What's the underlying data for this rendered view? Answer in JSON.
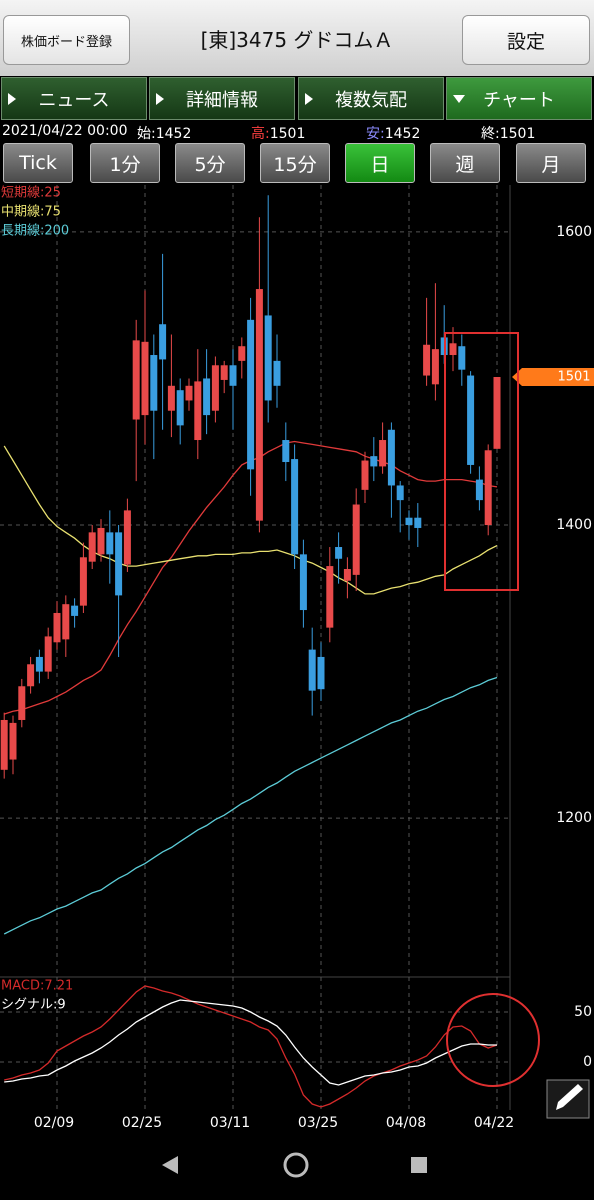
{
  "header": {
    "register_button": "株価ボード登録",
    "title": "[東]3475 グドコムＡ",
    "settings_button": "設定"
  },
  "tabs": [
    "ニュース",
    "詳細情報",
    "複数気配",
    "チャート"
  ],
  "info": {
    "datetime": "2021/04/22 00:00",
    "open": {
      "label": "始:",
      "value": 1452
    },
    "high": {
      "label": "高:",
      "value": 1501
    },
    "low": {
      "label": "安:",
      "value": 1452
    },
    "close": {
      "label": "終:",
      "value": 1501
    }
  },
  "periods": [
    "Tick",
    "1分",
    "5分",
    "15分",
    "日",
    "週",
    "月"
  ],
  "chart_data": [
    {
      "type": "candlestick",
      "categories": [
        null,
        null,
        null,
        null,
        null,
        null,
        "02/09",
        null,
        null,
        null,
        null,
        null,
        null,
        null,
        null,
        null,
        "02/25",
        null,
        null,
        null,
        null,
        null,
        null,
        null,
        null,
        null,
        "03/11",
        null,
        null,
        null,
        null,
        null,
        null,
        null,
        null,
        null,
        "03/25",
        null,
        null,
        null,
        null,
        null,
        null,
        null,
        null,
        null,
        "04/08",
        null,
        null,
        null,
        null,
        null,
        null,
        null,
        null,
        null,
        "04/22"
      ],
      "open": [
        1233,
        1240,
        1267,
        1290,
        1310,
        1300,
        1320,
        1322,
        1345,
        1345,
        1375,
        1380,
        1395,
        1395,
        1373,
        1472,
        1475,
        1516,
        1537,
        1478,
        1492,
        1485,
        1458,
        1500,
        1478,
        1499,
        1509,
        1512,
        1540,
        1403,
        1543,
        1512,
        1458,
        1445,
        1380,
        1315,
        1310,
        1330,
        1385,
        1362,
        1366,
        1424,
        1447,
        1440,
        1465,
        1427,
        1405,
        1405,
        1502,
        1496,
        1528,
        1516,
        1522,
        1502,
        1431,
        1400,
        1452
      ],
      "high": [
        1272,
        1270,
        1295,
        1310,
        1315,
        1330,
        1348,
        1352,
        1350,
        1388,
        1400,
        1404,
        1410,
        1400,
        1418,
        1540,
        1560,
        1530,
        1585,
        1530,
        1500,
        1500,
        1520,
        1520,
        1515,
        1512,
        1520,
        1528,
        1555,
        1610,
        1625,
        1530,
        1470,
        1455,
        1390,
        1330,
        1320,
        1385,
        1395,
        1378,
        1425,
        1450,
        1460,
        1470,
        1470,
        1430,
        1410,
        1415,
        1555,
        1565,
        1550,
        1535,
        1530,
        1505,
        1440,
        1455,
        1501
      ],
      "low": [
        1227,
        1230,
        1262,
        1285,
        1292,
        1295,
        1315,
        1310,
        1330,
        1340,
        1370,
        1375,
        1360,
        1310,
        1368,
        1430,
        1455,
        1445,
        1465,
        1460,
        1455,
        1478,
        1445,
        1462,
        1470,
        1490,
        1465,
        1500,
        1420,
        1395,
        1470,
        1480,
        1430,
        1370,
        1330,
        1270,
        1280,
        1320,
        1360,
        1350,
        1355,
        1415,
        1430,
        1435,
        1405,
        1395,
        1390,
        1385,
        1495,
        1485,
        1510,
        1505,
        1495,
        1435,
        1410,
        1393,
        1452
      ],
      "close": [
        1267,
        1265,
        1290,
        1305,
        1300,
        1324,
        1340,
        1346,
        1338,
        1378,
        1395,
        1398,
        1380,
        1352,
        1410,
        1526,
        1525,
        1478,
        1513,
        1495,
        1468,
        1495,
        1498,
        1475,
        1509,
        1509,
        1495,
        1522,
        1438,
        1561,
        1485,
        1495,
        1443,
        1380,
        1342,
        1287,
        1288,
        1372,
        1377,
        1370,
        1414,
        1444,
        1440,
        1458,
        1427,
        1417,
        1400,
        1398,
        1523,
        1520,
        1516,
        1524,
        1506,
        1441,
        1417,
        1451,
        1501
      ],
      "up_color": "#e84a4a",
      "down_color": "#3a9ee0",
      "series": [
        {
          "name": "短期線:25",
          "color": "#e03a3a",
          "values": [
            1271,
            1273,
            1274,
            1276,
            1278,
            1280,
            1283,
            1286,
            1290,
            1294,
            1297,
            1301,
            1311,
            1322,
            1332,
            1341,
            1351,
            1361,
            1371,
            1378,
            1387,
            1396,
            1404,
            1412,
            1419,
            1426,
            1434,
            1441,
            1444,
            1446,
            1450,
            1453,
            1456,
            1457,
            1456,
            1455,
            1454,
            1453,
            1452,
            1451,
            1450,
            1447,
            1445,
            1443,
            1441,
            1437,
            1434,
            1431,
            1430,
            1430,
            1431,
            1431,
            1431,
            1430,
            1429,
            1427,
            1426
          ]
        },
        {
          "name": "中期線:75",
          "color": "#e8e070",
          "values": [
            1454,
            1444,
            1434,
            1424,
            1414,
            1405,
            1399,
            1395,
            1391,
            1386,
            1382,
            1379,
            1377,
            1374,
            1372,
            1372,
            1373,
            1374,
            1375,
            1376,
            1377,
            1378,
            1379,
            1379,
            1380,
            1380,
            1380,
            1381,
            1381,
            1382,
            1382,
            1383,
            1381,
            1379,
            1376,
            1374,
            1371,
            1368,
            1364,
            1361,
            1357,
            1353,
            1353,
            1355,
            1357,
            1358,
            1360,
            1361,
            1363,
            1365,
            1366,
            1370,
            1373,
            1376,
            1379,
            1383,
            1386
          ]
        },
        {
          "name": "長期線:200",
          "color": "#5ccbd6",
          "values": [
            1121,
            1124,
            1127,
            1130,
            1132,
            1135,
            1138,
            1140,
            1143,
            1146,
            1149,
            1151,
            1155,
            1159,
            1162,
            1166,
            1169,
            1173,
            1177,
            1180,
            1184,
            1188,
            1192,
            1195,
            1199,
            1202,
            1206,
            1210,
            1213,
            1217,
            1221,
            1224,
            1228,
            1232,
            1235,
            1238,
            1241,
            1244,
            1247,
            1250,
            1253,
            1256,
            1259,
            1262,
            1265,
            1267,
            1270,
            1273,
            1275,
            1278,
            1281,
            1283,
            1286,
            1289,
            1291,
            1294,
            1296
          ]
        }
      ],
      "ylim": [
        1093,
        1632
      ],
      "yticks": [
        1200,
        1400,
        1600
      ],
      "grid": true,
      "price_marker": 1501,
      "price_marker_color": "#ff7a1a"
    },
    {
      "type": "line",
      "series": [
        {
          "name": "MACD:7.21",
          "color": "#d42a2a",
          "values": [
            -18,
            -16,
            -13,
            -11,
            -8,
            -1,
            11,
            16,
            21,
            26,
            30,
            35,
            43,
            52,
            61,
            70,
            76,
            74,
            71,
            69,
            66,
            62,
            58,
            55,
            52,
            49,
            46,
            43,
            40,
            35,
            32,
            23,
            4,
            -12,
            -33,
            -42,
            -45,
            -42,
            -37,
            -32,
            -26,
            -19,
            -14,
            -11,
            -8,
            -4,
            -1,
            2,
            6,
            15,
            27,
            35,
            36,
            31,
            18,
            14,
            17
          ]
        },
        {
          "name": "シグナル:9",
          "color": "#ffffff",
          "values": [
            -20,
            -19,
            -17,
            -16,
            -14,
            -13,
            -8,
            -4,
            1,
            5,
            9,
            14,
            20,
            27,
            33,
            40,
            45,
            50,
            55,
            59,
            62,
            61,
            60,
            59,
            58,
            57,
            56,
            54,
            50,
            45,
            41,
            36,
            27,
            15,
            4,
            -5,
            -13,
            -21,
            -23,
            -20,
            -17,
            -14,
            -13,
            -11,
            -10,
            -8,
            -5,
            -4,
            -1,
            4,
            8,
            12,
            16,
            18,
            18,
            17,
            17
          ]
        }
      ],
      "ylim": [
        -48,
        84
      ],
      "yticks": [
        0,
        50
      ],
      "grid": true
    }
  ]
}
